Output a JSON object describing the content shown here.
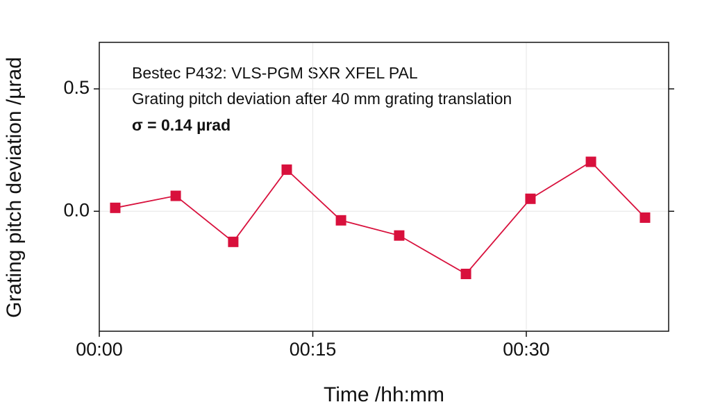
{
  "chart_data": {
    "type": "line",
    "annotations": [
      "Bestec P432: VLS-PGM SXR XFEL PAL",
      "Grating pitch deviation after 40 mm grating translation",
      "σ = 0.14 µrad"
    ],
    "xlabel": "Time /hh:mm",
    "ylabel": "Grating pitch deviation /µrad",
    "x": [
      1.12,
      5.37,
      9.41,
      13.17,
      16.98,
      21.07,
      25.76,
      30.29,
      34.54,
      38.34
    ],
    "series": [
      {
        "color": "#d8103c",
        "values": [
          0.014,
          0.063,
          -0.125,
          0.17,
          -0.037,
          -0.099,
          -0.256,
          0.051,
          0.202,
          -0.026
        ]
      }
    ],
    "xlim": [
      0,
      40
    ],
    "xticks": [
      {
        "value": 0,
        "label": "00:00"
      },
      {
        "value": 15,
        "label": "00:15"
      },
      {
        "value": 30,
        "label": "00:30"
      }
    ],
    "ylim": [
      -0.49,
      0.69
    ],
    "yticks": [
      {
        "value": 0.5,
        "label": "0.5"
      },
      {
        "value": 0,
        "label": "0.0"
      }
    ],
    "grid": true
  }
}
